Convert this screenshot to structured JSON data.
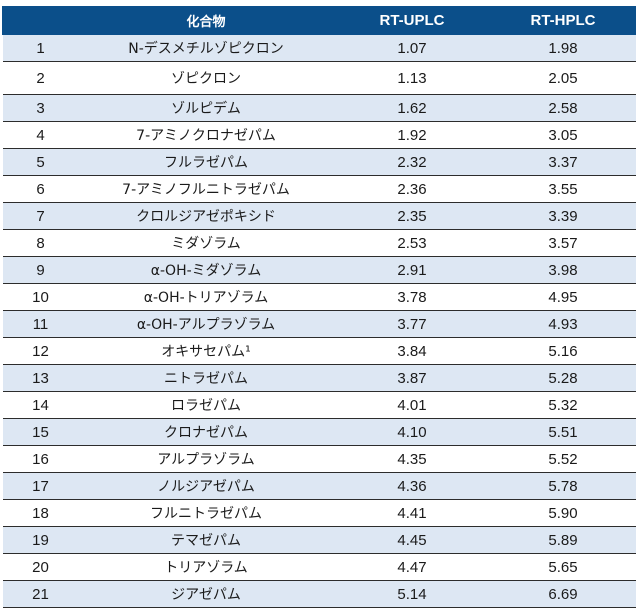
{
  "table": {
    "headers": [
      "",
      "化合物",
      "RT-UPLC",
      "RT-HPLC"
    ],
    "rows": [
      [
        "1",
        "N-デスメチルゾピクロン",
        "1.07",
        "1.98"
      ],
      [
        "2",
        "ゾピクロン",
        "1.13",
        "2.05"
      ],
      [
        "3",
        "ゾルピデム",
        "1.62",
        "2.58"
      ],
      [
        "4",
        "7-アミノクロナゼパム",
        "1.92",
        "3.05"
      ],
      [
        "5",
        "フルラゼパム",
        "2.32",
        "3.37"
      ],
      [
        "6",
        "7-アミノフルニトラゼパム",
        "2.36",
        "3.55"
      ],
      [
        "7",
        "クロルジアゼポキシド",
        "2.35",
        "3.39"
      ],
      [
        "8",
        "ミダゾラム",
        "2.53",
        "3.57"
      ],
      [
        "9",
        "α-OH-ミダゾラム",
        "2.91",
        "3.98"
      ],
      [
        "10",
        "α-OH-トリアゾラム",
        "3.78",
        "4.95"
      ],
      [
        "11",
        "α-OH-アルプラゾラム",
        "3.77",
        "4.93"
      ],
      [
        "12",
        "オキサセパム¹",
        "3.84",
        "5.16"
      ],
      [
        "13",
        "ニトラゼパム",
        "3.87",
        "5.28"
      ],
      [
        "14",
        "ロラゼパム",
        "4.01",
        "5.32"
      ],
      [
        "15",
        "クロナゼパム",
        "4.10",
        "5.51"
      ],
      [
        "16",
        "アルプラゾラム",
        "4.35",
        "5.52"
      ],
      [
        "17",
        "ノルジアゼパム",
        "4.36",
        "5.78"
      ],
      [
        "18",
        "フルニトラゼパム",
        "4.41",
        "5.90"
      ],
      [
        "19",
        "テマゼパム",
        "4.45",
        "5.89"
      ],
      [
        "20",
        "トリアゾラム",
        "4.47",
        "5.65"
      ],
      [
        "21",
        "ジアゼパム",
        "5.14",
        "6.69"
      ]
    ]
  }
}
